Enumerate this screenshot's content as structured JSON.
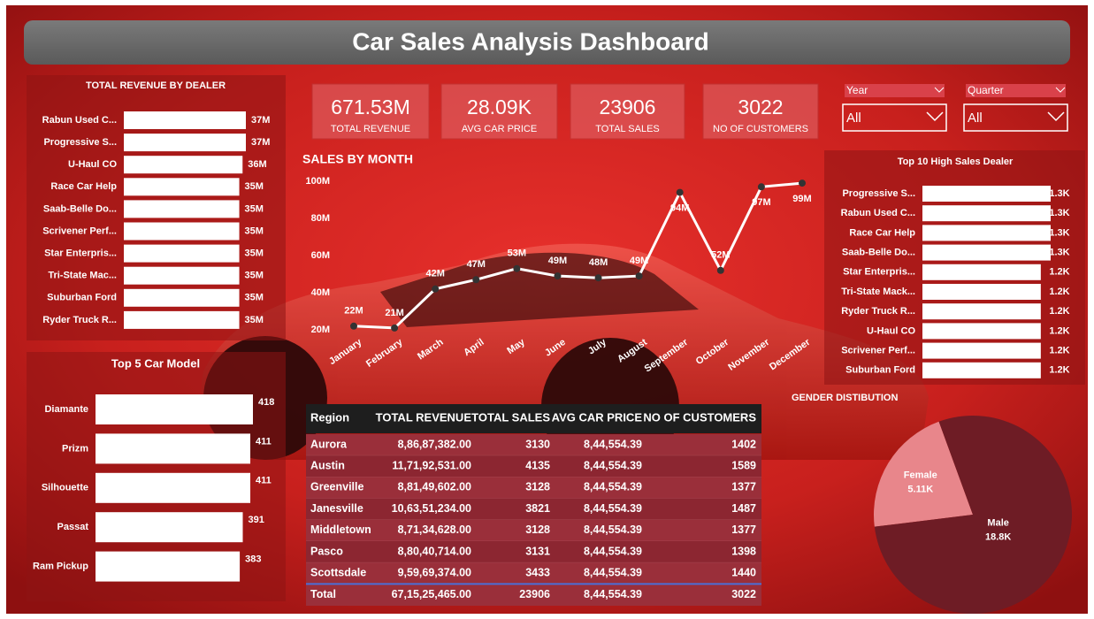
{
  "header": {
    "title": "Car Sales Analysis Dashboard"
  },
  "kpis": [
    {
      "value": "671.53M",
      "label": "TOTAL REVENUE"
    },
    {
      "value": "28.09K",
      "label": "AVG CAR PRICE"
    },
    {
      "value": "23906",
      "label": "TOTAL SALES"
    },
    {
      "value": "3022",
      "label": "NO OF CUSTOMERS"
    }
  ],
  "filters": [
    {
      "label": "Year",
      "value": "All"
    },
    {
      "label": "Quarter",
      "value": "All"
    }
  ],
  "chart_data": [
    {
      "type": "bar",
      "orientation": "horizontal",
      "title": "TOTAL REVENUE BY DEALER",
      "color": "#ffffff",
      "categories": [
        "Rabun Used C...",
        "Progressive S...",
        "U-Haul CO",
        "Race Car Help",
        "Saab-Belle Do...",
        "Scrivener Perf...",
        "Star Enterpris...",
        "Tri-State Mac...",
        "Suburban Ford",
        "Ryder Truck R..."
      ],
      "values": [
        37,
        37,
        36,
        35,
        35,
        35,
        35,
        35,
        35,
        35
      ],
      "value_labels": [
        "37M",
        "37M",
        "36M",
        "35M",
        "35M",
        "35M",
        "35M",
        "35M",
        "35M",
        "35M"
      ]
    },
    {
      "type": "line",
      "title": "SALES BY MONTH",
      "color": "#ffffff",
      "marker_color": "#333333",
      "categories": [
        "January",
        "February",
        "March",
        "April",
        "May",
        "June",
        "July",
        "August",
        "September",
        "October",
        "November",
        "December"
      ],
      "values": [
        22,
        21,
        42,
        47,
        53,
        49,
        48,
        49,
        94,
        52,
        97,
        99
      ],
      "value_labels": [
        "22M",
        "21M",
        "42M",
        "47M",
        "53M",
        "49M",
        "48M",
        "49M",
        "94M",
        "52M",
        "97M",
        "99M"
      ],
      "ylim": [
        20,
        100
      ],
      "yticks": [
        {
          "value": 20,
          "label": "20M"
        },
        {
          "value": 40,
          "label": "40M"
        },
        {
          "value": 60,
          "label": "60M"
        },
        {
          "value": 80,
          "label": "80M"
        },
        {
          "value": 100,
          "label": "100M"
        }
      ],
      "grid": false
    },
    {
      "type": "bar",
      "orientation": "horizontal",
      "title": "Top 10 High Sales Dealer",
      "color": "#ffffff",
      "categories": [
        "Progressive S...",
        "Rabun Used C...",
        "Race Car Help",
        "Saab-Belle Do...",
        "Star Enterpris...",
        "Tri-State Mack...",
        "Ryder Truck R...",
        "U-Haul CO",
        "Scrivener Perf...",
        "Suburban Ford"
      ],
      "values": [
        1.3,
        1.3,
        1.3,
        1.3,
        1.2,
        1.2,
        1.2,
        1.2,
        1.2,
        1.2
      ],
      "value_labels": [
        "1.3K",
        "1.3K",
        "1.3K",
        "1.3K",
        "1.2K",
        "1.2K",
        "1.2K",
        "1.2K",
        "1.2K",
        "1.2K"
      ]
    },
    {
      "type": "bar",
      "orientation": "horizontal",
      "title": "Top 5 Car Model",
      "color": "#ffffff",
      "categories": [
        "Diamante",
        "Prizm",
        "Silhouette",
        "Passat",
        "Ram Pickup"
      ],
      "values": [
        418,
        411,
        411,
        391,
        383
      ]
    },
    {
      "type": "pie",
      "title": "GENDER DISTIBUTION",
      "categories": [
        "Female",
        "Male"
      ],
      "values": [
        5.11,
        18.8
      ],
      "value_labels": [
        "5.11K",
        "18.8K"
      ],
      "colors": [
        "#e8868b",
        "#6e1c25"
      ]
    }
  ],
  "table": {
    "columns": [
      "Region",
      "TOTAL REVENUE",
      "TOTAL SALES",
      "AVG CAR PRICE",
      "NO OF CUSTOMERS"
    ],
    "rows": [
      [
        "Aurora",
        "8,86,87,382.00",
        "3130",
        "8,44,554.39",
        "1402"
      ],
      [
        "Austin",
        "11,71,92,531.00",
        "4135",
        "8,44,554.39",
        "1589"
      ],
      [
        "Greenville",
        "8,81,49,602.00",
        "3128",
        "8,44,554.39",
        "1377"
      ],
      [
        "Janesville",
        "10,63,51,234.00",
        "3821",
        "8,44,554.39",
        "1487"
      ],
      [
        "Middletown",
        "8,71,34,628.00",
        "3128",
        "8,44,554.39",
        "1377"
      ],
      [
        "Pasco",
        "8,80,40,714.00",
        "3131",
        "8,44,554.39",
        "1398"
      ],
      [
        "Scottsdale",
        "9,59,69,374.00",
        "3433",
        "8,44,554.39",
        "1440"
      ]
    ],
    "total": [
      "Total",
      "67,15,25,465.00",
      "23906",
      "8,44,554.39",
      "3022"
    ]
  }
}
